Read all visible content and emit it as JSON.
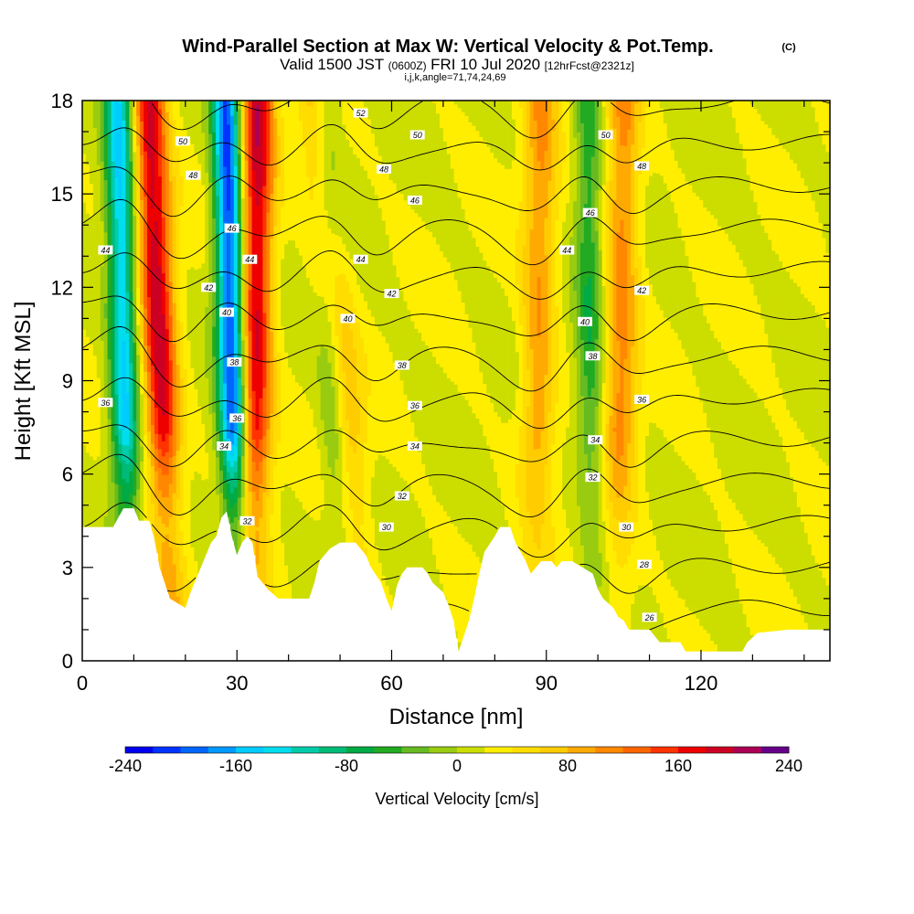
{
  "title": {
    "main": "Wind-Parallel Section at Max W: Vertical Velocity & Pot.Temp.",
    "copyright": "(C)",
    "valid_prefix": "Valid 1500 JST",
    "valid_zulu": "(0600Z)",
    "valid_date": "FRI 10 Jul 2020",
    "forecast": "[12hrFcst@2321z]",
    "indices": "i,j,k,angle=71,74,24,69"
  },
  "chart_data": {
    "type": "heatmap",
    "xlabel": "Distance [nm]",
    "ylabel": "Height [Kft MSL]",
    "xlim": [
      0,
      145
    ],
    "ylim": [
      0,
      18
    ],
    "x_ticks": [
      0,
      30,
      60,
      90,
      120
    ],
    "y_ticks": [
      0,
      3,
      6,
      9,
      12,
      15,
      18
    ],
    "colorbar": {
      "title": "Vertical Velocity [cm/s]",
      "min": -240,
      "max": 240,
      "step": 20,
      "tick_values": [
        -240,
        -160,
        -80,
        0,
        80,
        160,
        240
      ],
      "colors": [
        "#0000ee",
        "#0033ff",
        "#0066ff",
        "#0099ff",
        "#00ccff",
        "#00ddee",
        "#00ccaa",
        "#00bb77",
        "#00aa44",
        "#22aa22",
        "#66bb22",
        "#99cc11",
        "#ccdd00",
        "#ffee00",
        "#ffdd00",
        "#ffcc00",
        "#ffaa00",
        "#ff8800",
        "#ff6600",
        "#ff3300",
        "#ee0000",
        "#cc0022",
        "#aa0055",
        "#660088"
      ]
    },
    "updraft_cores": [
      {
        "x_base": 17,
        "x_top": 13,
        "peak_cm_s": 170
      },
      {
        "x_base": 33,
        "x_top": 34,
        "peak_cm_s": 170
      },
      {
        "x_base": 55,
        "x_top": 45,
        "peak_cm_s": 70
      },
      {
        "x_base": 88,
        "x_top": 89,
        "peak_cm_s": 80
      },
      {
        "x_base": 104,
        "x_top": 105,
        "peak_cm_s": 90
      }
    ],
    "downdraft_cores": [
      {
        "x_base": 30,
        "x_top": 28,
        "peak_cm_s": -230
      },
      {
        "x_base": 9,
        "x_top": 7,
        "peak_cm_s": -160
      },
      {
        "x_base": 50,
        "x_top": 47,
        "peak_cm_s": -60
      },
      {
        "x_base": 99,
        "x_top": 98,
        "peak_cm_s": -70
      }
    ],
    "terrain": [
      [
        0,
        4.3
      ],
      [
        6,
        4.3
      ],
      [
        7,
        4.6
      ],
      [
        8,
        4.9
      ],
      [
        10,
        4.9
      ],
      [
        11,
        4.5
      ],
      [
        13,
        4.5
      ],
      [
        14,
        3.9
      ],
      [
        15,
        3.0
      ],
      [
        16,
        2.5
      ],
      [
        17,
        2.0
      ],
      [
        20,
        1.7
      ],
      [
        21,
        2.2
      ],
      [
        23,
        3.0
      ],
      [
        25,
        3.8
      ],
      [
        26,
        4.0
      ],
      [
        27,
        4.6
      ],
      [
        28,
        4.8
      ],
      [
        29,
        4.0
      ],
      [
        30,
        3.4
      ],
      [
        31,
        3.8
      ],
      [
        32,
        4.0
      ],
      [
        33,
        3.8
      ],
      [
        34,
        2.7
      ],
      [
        36,
        2.3
      ],
      [
        38,
        2.0
      ],
      [
        44,
        2.0
      ],
      [
        45,
        2.5
      ],
      [
        46,
        3.2
      ],
      [
        48,
        3.6
      ],
      [
        50,
        3.8
      ],
      [
        53,
        3.8
      ],
      [
        54,
        3.6
      ],
      [
        55,
        3.4
      ],
      [
        56,
        3.0
      ],
      [
        58,
        2.5
      ],
      [
        59,
        2.0
      ],
      [
        60,
        1.6
      ],
      [
        61,
        2.4
      ],
      [
        62,
        2.8
      ],
      [
        63,
        3.0
      ],
      [
        66,
        3.0
      ],
      [
        67,
        2.8
      ],
      [
        68,
        2.5
      ],
      [
        70,
        2.2
      ],
      [
        71,
        1.8
      ],
      [
        72,
        1.3
      ],
      [
        73,
        0.3
      ],
      [
        74,
        0.8
      ],
      [
        75,
        1.3
      ],
      [
        76,
        2.0
      ],
      [
        77,
        2.8
      ],
      [
        78,
        3.5
      ],
      [
        80,
        4.0
      ],
      [
        81,
        4.3
      ],
      [
        83,
        4.3
      ],
      [
        84,
        3.8
      ],
      [
        86,
        3.2
      ],
      [
        87,
        2.8
      ],
      [
        88,
        3.0
      ],
      [
        89,
        3.2
      ],
      [
        91,
        3.2
      ],
      [
        92,
        3.0
      ],
      [
        93,
        3.2
      ],
      [
        94,
        3.2
      ],
      [
        95,
        3.2
      ],
      [
        97,
        3.0
      ],
      [
        99,
        2.8
      ],
      [
        100,
        2.3
      ],
      [
        101,
        2.0
      ],
      [
        103,
        1.7
      ],
      [
        104,
        1.4
      ],
      [
        105,
        1.3
      ],
      [
        106,
        1.0
      ],
      [
        110,
        1.0
      ],
      [
        111,
        0.8
      ],
      [
        112,
        0.6
      ],
      [
        116,
        0.6
      ],
      [
        117,
        0.3
      ],
      [
        128,
        0.3
      ],
      [
        129,
        0.6
      ],
      [
        131,
        0.9
      ],
      [
        137,
        1.0
      ],
      [
        145,
        1.0
      ]
    ],
    "theta_contours": {
      "min_level": 26,
      "max_level": 52,
      "step": 2,
      "labels": [
        {
          "x": 4.5,
          "y": 13.2,
          "text": "44"
        },
        {
          "x": 4.5,
          "y": 8.3,
          "text": "36"
        },
        {
          "x": 19.5,
          "y": 16.7,
          "text": "50"
        },
        {
          "x": 21.5,
          "y": 15.6,
          "text": "48"
        },
        {
          "x": 24.5,
          "y": 12.0,
          "text": "42"
        },
        {
          "x": 29.0,
          "y": 13.9,
          "text": "46"
        },
        {
          "x": 32.5,
          "y": 12.9,
          "text": "44"
        },
        {
          "x": 28.0,
          "y": 11.2,
          "text": "40"
        },
        {
          "x": 29.5,
          "y": 9.6,
          "text": "38"
        },
        {
          "x": 30.0,
          "y": 7.8,
          "text": "36"
        },
        {
          "x": 27.5,
          "y": 6.9,
          "text": "34"
        },
        {
          "x": 32.0,
          "y": 4.5,
          "text": "32"
        },
        {
          "x": 54.0,
          "y": 17.6,
          "text": "52"
        },
        {
          "x": 65.0,
          "y": 16.9,
          "text": "50"
        },
        {
          "x": 58.5,
          "y": 15.8,
          "text": "48"
        },
        {
          "x": 64.5,
          "y": 14.8,
          "text": "46"
        },
        {
          "x": 54.0,
          "y": 12.9,
          "text": "44"
        },
        {
          "x": 60.0,
          "y": 11.8,
          "text": "42"
        },
        {
          "x": 51.5,
          "y": 11.0,
          "text": "40"
        },
        {
          "x": 62.0,
          "y": 9.5,
          "text": "38"
        },
        {
          "x": 64.5,
          "y": 8.2,
          "text": "36"
        },
        {
          "x": 64.5,
          "y": 6.9,
          "text": "34"
        },
        {
          "x": 62.0,
          "y": 5.3,
          "text": "32"
        },
        {
          "x": 59.0,
          "y": 4.3,
          "text": "30"
        },
        {
          "x": 101.5,
          "y": 16.9,
          "text": "50"
        },
        {
          "x": 108.5,
          "y": 15.9,
          "text": "48"
        },
        {
          "x": 98.5,
          "y": 14.4,
          "text": "46"
        },
        {
          "x": 94.0,
          "y": 13.2,
          "text": "44"
        },
        {
          "x": 108.5,
          "y": 11.9,
          "text": "42"
        },
        {
          "x": 97.5,
          "y": 10.9,
          "text": "40"
        },
        {
          "x": 99.0,
          "y": 9.8,
          "text": "38"
        },
        {
          "x": 108.5,
          "y": 8.4,
          "text": "36"
        },
        {
          "x": 99.5,
          "y": 7.1,
          "text": "34"
        },
        {
          "x": 99.0,
          "y": 5.9,
          "text": "32"
        },
        {
          "x": 105.5,
          "y": 4.3,
          "text": "30"
        },
        {
          "x": 109.0,
          "y": 3.1,
          "text": "28"
        },
        {
          "x": 110.0,
          "y": 1.4,
          "text": "26"
        }
      ]
    }
  }
}
